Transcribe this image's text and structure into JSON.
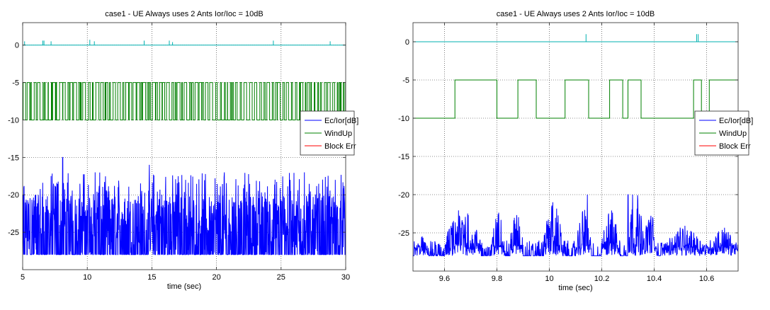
{
  "chart_data": [
    {
      "type": "line",
      "title": "case1 - UE Always uses 2 Ants Ior/Ioc = 10dB",
      "xlabel": "time (sec)",
      "ylabel": "",
      "xlim": [
        5,
        30
      ],
      "ylim": [
        -30,
        3
      ],
      "xticks": [
        5,
        10,
        15,
        20,
        25,
        30
      ],
      "yticks": [
        0,
        -5,
        -10,
        -15,
        -20,
        -25
      ],
      "grid": true,
      "legend": "right",
      "series": [
        {
          "name": "Ec/Ior[dB]",
          "color": "#0000ff",
          "style": "noise",
          "baseline": -28,
          "range": [
            -28,
            -15
          ],
          "x": [
            5,
            8.1,
            10.6,
            14.8,
            17.6,
            20.6,
            25.7,
            26.8,
            29.2
          ],
          "peaks": [
            -17,
            -15,
            -17,
            -16,
            -18,
            -17,
            -18,
            -17,
            -18
          ]
        },
        {
          "name": "WindUp",
          "color": "#008000",
          "style": "square",
          "levels": [
            -10,
            -5
          ],
          "x": [
            5,
            30
          ]
        },
        {
          "name": "Block Err",
          "color": "#ff0000",
          "style": "hidden",
          "values": []
        },
        {
          "name": "",
          "color": "#00b0b0",
          "style": "spikes",
          "baseline": 0,
          "x": [
            5.15,
            6.55,
            6.65,
            7.2,
            10.2,
            10.55,
            14.4,
            16.35,
            16.6,
            24.4,
            28.8
          ],
          "heights": [
            0.5,
            0.6,
            0.6,
            0.5,
            0.7,
            0.5,
            0.6,
            0.6,
            0.4,
            0.6,
            0.5
          ]
        }
      ]
    },
    {
      "type": "line",
      "title": "case1 - UE Always uses 2 Ants Ior/Ioc = 10dB",
      "xlabel": "time (sec)",
      "ylabel": "",
      "xlim": [
        9.48,
        10.72
      ],
      "ylim": [
        -30,
        2.5
      ],
      "xticks": [
        9.6,
        9.8,
        10,
        10.2,
        10.4,
        10.6
      ],
      "yticks": [
        0,
        -5,
        -10,
        -15,
        -20,
        -25
      ],
      "grid": true,
      "legend": "right",
      "series": [
        {
          "name": "Ec/Ior[dB]",
          "color": "#0000ff",
          "style": "bursts",
          "baseline": -28,
          "bursts": [
            {
              "x": [
                9.485,
                9.54
              ],
              "peak": -26
            },
            {
              "x": [
                9.6,
                9.74
              ],
              "peak": -23
            },
            {
              "x": [
                9.78,
                9.83
              ],
              "peak": -23
            },
            {
              "x": [
                9.85,
                9.9
              ],
              "peak": -23
            },
            {
              "x": [
                9.98,
                10.05
              ],
              "peak": -22
            },
            {
              "x": [
                10.1,
                10.16
              ],
              "peak": -23
            },
            {
              "x": [
                10.2,
                10.27
              ],
              "peak": -23
            },
            {
              "x": [
                10.3,
                10.36
              ],
              "peak": -21
            },
            {
              "x": [
                10.36,
                10.41
              ],
              "peak": -23
            },
            {
              "x": [
                10.43,
                10.6
              ],
              "peak": -25
            },
            {
              "x": [
                10.6,
                10.72
              ],
              "peak": -25
            }
          ],
          "peaks": [
            {
              "x": 10.145,
              "y": -20
            },
            {
              "x": 10.3,
              "y": -20
            },
            {
              "x": 10.318,
              "y": -20
            }
          ]
        },
        {
          "name": "WindUp",
          "color": "#008000",
          "style": "steps",
          "x": [
            9.48,
            9.64,
            9.64,
            9.8,
            9.8,
            9.88,
            9.88,
            9.95,
            9.95,
            10.06,
            10.06,
            10.15,
            10.15,
            10.23,
            10.23,
            10.28,
            10.28,
            10.3,
            10.3,
            10.35,
            10.35,
            10.55,
            10.55,
            10.58,
            10.58,
            10.61,
            10.61,
            10.72
          ],
          "y": [
            -10,
            -10,
            -5,
            -5,
            -10,
            -10,
            -5,
            -5,
            -10,
            -10,
            -5,
            -5,
            -10,
            -10,
            -5,
            -5,
            -10,
            -10,
            -5,
            -5,
            -10,
            -10,
            -5,
            -5,
            -10,
            -10,
            -5,
            -5
          ]
        },
        {
          "name": "Block Err",
          "color": "#ff0000",
          "style": "hidden",
          "values": []
        },
        {
          "name": "",
          "color": "#00b0b0",
          "style": "spikes",
          "baseline": 0,
          "x": [
            10.14,
            10.562,
            10.568
          ],
          "heights": [
            1.0,
            1.0,
            1.0
          ]
        }
      ]
    }
  ]
}
